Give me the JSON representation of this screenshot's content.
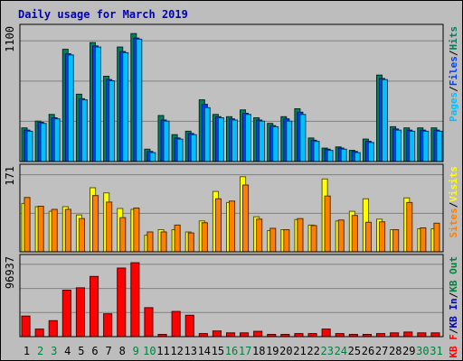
{
  "chart_data": {
    "type": "bar",
    "title": "Daily usage for March 2019",
    "categories": [
      "1",
      "2",
      "3",
      "4",
      "5",
      "6",
      "7",
      "8",
      "9",
      "10",
      "11",
      "12",
      "13",
      "14",
      "15",
      "16",
      "17",
      "18",
      "19",
      "20",
      "21",
      "22",
      "23",
      "24",
      "25",
      "26",
      "27",
      "28",
      "29",
      "30",
      "31"
    ],
    "weekend_days": [
      "2",
      "3",
      "9",
      "10",
      "16",
      "17",
      "23",
      "24",
      "30",
      "31"
    ],
    "colors": {
      "hits": "#00805c",
      "files": "#0040ff",
      "pages": "#00c0ff",
      "visits": "#ffff00",
      "sites": "#ff8000",
      "kb_f": "#ff0000",
      "kb_in": "#0000c0",
      "kb_out": "#008040",
      "weekday_label": "#000000",
      "weekend_label": "#008040",
      "title": "#0000bb"
    },
    "panels": [
      {
        "id": "hits",
        "ytick": "1100",
        "ylim": [
          0,
          1100
        ],
        "legend": [
          {
            "label": "Pages",
            "color": "#00c0ff"
          },
          {
            "label": "Files",
            "color": "#0040ff"
          },
          {
            "label": "Hits",
            "color": "#00805c"
          }
        ],
        "series": [
          {
            "name": "Hits",
            "color": "#00805c",
            "values": [
              300,
              360,
              420,
              1000,
              600,
              1060,
              760,
              1020,
              1140,
              110,
              410,
              240,
              270,
              550,
              420,
              400,
              460,
              390,
              340,
              400,
              470,
              210,
              120,
              130,
              100,
              200,
              770,
              310,
              300,
              300,
              300
            ]
          },
          {
            "name": "Files",
            "color": "#0040ff",
            "values": [
              280,
              350,
              390,
              960,
              560,
              1030,
              730,
              980,
              1100,
              90,
              370,
              210,
              250,
              510,
              400,
              380,
              430,
              370,
              320,
              380,
              440,
              190,
              110,
              120,
              90,
              180,
              740,
              290,
              280,
              280,
              280
            ]
          },
          {
            "name": "Pages",
            "color": "#00c0ff",
            "values": [
              270,
              340,
              380,
              950,
              550,
              1020,
              720,
              970,
              1090,
              80,
              360,
              200,
              240,
              480,
              390,
              370,
              420,
              360,
              310,
              360,
              420,
              180,
              100,
              110,
              80,
              170,
              730,
              280,
              270,
              270,
              270
            ]
          }
        ]
      },
      {
        "id": "visits",
        "ytick": "171",
        "ylim": [
          0,
          171
        ],
        "legend": [
          {
            "label": "Sites",
            "color": "#ff8000"
          },
          {
            "label": "Visits",
            "color": "#ffff00"
          }
        ],
        "series": [
          {
            "name": "Visits",
            "color": "#ffff00",
            "values": [
              105,
              98,
              88,
              98,
              80,
              139,
              128,
              94,
              92,
              36,
              48,
              48,
              43,
              67,
              131,
              107,
              163,
              76,
              46,
              48,
              70,
              58,
              158,
              67,
              88,
              115,
              71,
              48,
              117,
              50,
              50
            ]
          },
          {
            "name": "Sites",
            "color": "#ff8000",
            "values": [
              118,
              99,
              92,
              92,
              72,
              122,
              108,
              74,
              95,
              43,
              43,
              58,
              41,
              63,
              115,
              110,
              145,
              71,
              51,
              48,
              72,
              57,
              121,
              69,
              79,
              64,
              65,
              48,
              107,
              52,
              62
            ]
          }
        ]
      },
      {
        "id": "kbytes",
        "ytick": "96937",
        "ylim": [
          0,
          96937
        ],
        "legend": [
          {
            "label": "KB F",
            "color": "#ff0000"
          },
          {
            "label": "KB In",
            "color": "#0000c0"
          },
          {
            "label": "KB Out",
            "color": "#008040"
          }
        ],
        "series": [
          {
            "name": "KB F",
            "color": "#ff0000",
            "values": [
              27000,
              10000,
              21000,
              61000,
              64000,
              79000,
              30000,
              90000,
              96937,
              38000,
              3000,
              33000,
              28000,
              4000,
              7500,
              5000,
              5000,
              7000,
              3000,
              3000,
              4000,
              4000,
              10000,
              4000,
              3000,
              3000,
              4000,
              5000,
              6000,
              5000,
              5000
            ]
          }
        ]
      }
    ]
  }
}
